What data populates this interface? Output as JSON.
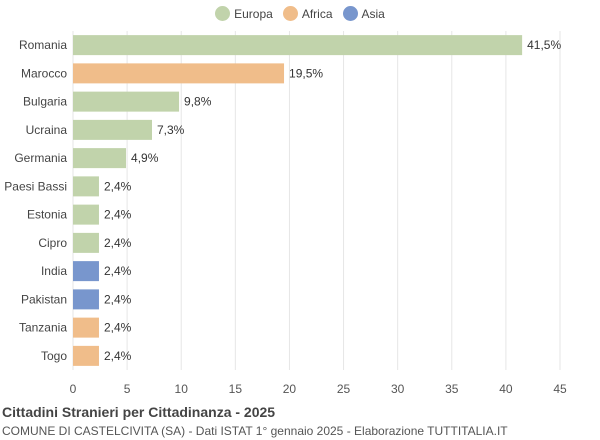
{
  "chart_data": {
    "type": "bar",
    "orientation": "horizontal",
    "title": "Cittadini Stranieri per Cittadinanza - 2025",
    "subtitle": "COMUNE DI CASTELCIVITA (SA) - Dati ISTAT 1° gennaio 2025 - Elaborazione TUTTITALIA.IT",
    "legend": [
      {
        "label": "Europa",
        "color": "#c1d3ab"
      },
      {
        "label": "Africa",
        "color": "#f0bd8a"
      },
      {
        "label": "Asia",
        "color": "#7896cd"
      }
    ],
    "categories": [
      "Romania",
      "Marocco",
      "Bulgaria",
      "Ucraina",
      "Germania",
      "Paesi Bassi",
      "Estonia",
      "Cipro",
      "India",
      "Pakistan",
      "Tanzania",
      "Togo"
    ],
    "values": [
      41.5,
      19.5,
      9.8,
      7.3,
      4.9,
      2.4,
      2.4,
      2.4,
      2.4,
      2.4,
      2.4,
      2.4
    ],
    "value_labels": [
      "41,5%",
      "19,5%",
      "9,8%",
      "7,3%",
      "4,9%",
      "2,4%",
      "2,4%",
      "2,4%",
      "2,4%",
      "2,4%",
      "2,4%",
      "2,4%"
    ],
    "groups": [
      "Europa",
      "Africa",
      "Europa",
      "Europa",
      "Europa",
      "Europa",
      "Europa",
      "Europa",
      "Asia",
      "Asia",
      "Africa",
      "Africa"
    ],
    "xlim": [
      0,
      45
    ],
    "xticks": [
      0,
      5,
      10,
      15,
      20,
      25,
      30,
      35,
      40,
      45
    ],
    "grid": true,
    "legend_position": "top"
  }
}
